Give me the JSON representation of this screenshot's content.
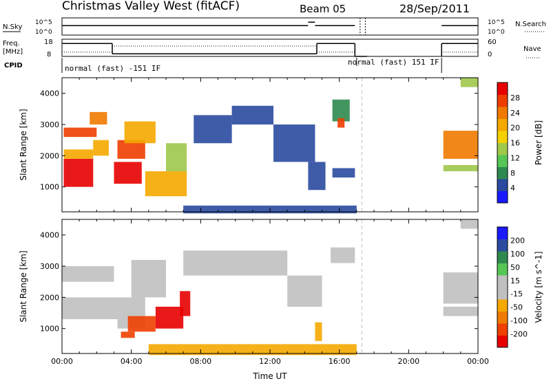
{
  "header": {
    "station": "Christmas Valley West (fitACF)",
    "beam": "Beam 05",
    "date": "28/Sep/2011"
  },
  "strip_labels": {
    "nsky": "N.Sky",
    "freq": "Freq.",
    "freq_unit": "[MHz]",
    "cpid": "CPID",
    "nsearch": "N.Search",
    "nave": "Nave"
  },
  "strip_ticks": {
    "noise_left": [
      "10^5",
      "10^0"
    ],
    "noise_right": [
      "10^5",
      "10^0"
    ],
    "freq_left": [
      "18",
      "8"
    ],
    "nave_right": [
      "60",
      "0"
    ]
  },
  "cpid_labels": [
    "normal (fast) -151 IF",
    "normal (fast) 151 IF"
  ],
  "colors": {
    "power_scale": [
      "#1a1aff",
      "#2a4aa0",
      "#2f8a4f",
      "#56c756",
      "#a0c84a",
      "#f5d000",
      "#f5a800",
      "#f07a00",
      "#ee3d00",
      "#e80000"
    ],
    "velocity_scale": [
      "#e80000",
      "#ee4000",
      "#f07a00",
      "#f5a800",
      "#c0c0c0",
      "#c0c0c0",
      "#56c756",
      "#2f8a4f",
      "#2a4aa0",
      "#1a1aff"
    ],
    "gap_line": "#c0c0c0"
  },
  "chart_data": [
    {
      "type": "heatmap",
      "quantity": "Power",
      "ylabel": "Slant Range [km]",
      "yticks": [
        "1000",
        "2000",
        "3000",
        "4000"
      ],
      "ylim": [
        200,
        4500
      ],
      "colorbar_label": "Power [dB]",
      "colorbar_ticks": [
        "4",
        "8",
        "12",
        "16",
        "20",
        "24",
        "28"
      ],
      "colorbar_range": [
        0,
        30
      ],
      "regions": [
        {
          "t": [
            0.1,
            1.8
          ],
          "r": [
            1000,
            1900
          ],
          "v": 28
        },
        {
          "t": [
            0.1,
            1.8
          ],
          "r": [
            1900,
            2200
          ],
          "v": 18
        },
        {
          "t": [
            0.1,
            2.0
          ],
          "r": [
            2600,
            2900
          ],
          "v": 26
        },
        {
          "t": [
            1.6,
            2.6
          ],
          "r": [
            3000,
            3400
          ],
          "v": 22
        },
        {
          "t": [
            1.8,
            2.7
          ],
          "r": [
            2000,
            2500
          ],
          "v": 20
        },
        {
          "t": [
            3.0,
            4.6
          ],
          "r": [
            1100,
            1800
          ],
          "v": 28
        },
        {
          "t": [
            3.2,
            4.8
          ],
          "r": [
            1900,
            2500
          ],
          "v": 24
        },
        {
          "t": [
            3.6,
            5.4
          ],
          "r": [
            2400,
            3100
          ],
          "v": 20
        },
        {
          "t": [
            4.8,
            7.2
          ],
          "r": [
            700,
            1500
          ],
          "v": 20
        },
        {
          "t": [
            6.0,
            7.2
          ],
          "r": [
            1500,
            2400
          ],
          "v": 12
        },
        {
          "t": [
            7.6,
            9.8
          ],
          "r": [
            2400,
            3300
          ],
          "v": 4
        },
        {
          "t": [
            9.8,
            12.2
          ],
          "r": [
            3000,
            3600
          ],
          "v": 4
        },
        {
          "t": [
            12.2,
            14.6
          ],
          "r": [
            1800,
            3000
          ],
          "v": 4
        },
        {
          "t": [
            14.2,
            15.2
          ],
          "r": [
            900,
            1800
          ],
          "v": 4
        },
        {
          "t": [
            15.6,
            16.6
          ],
          "r": [
            3100,
            3800
          ],
          "v": 8
        },
        {
          "t": [
            15.9,
            16.3
          ],
          "r": [
            2900,
            3200
          ],
          "v": 24
        },
        {
          "t": [
            15.6,
            16.9
          ],
          "r": [
            1300,
            1600
          ],
          "v": 4
        },
        {
          "t": [
            7.0,
            17.0
          ],
          "r": [
            150,
            400
          ],
          "v": 4
        },
        {
          "t": [
            22.0,
            24.0
          ],
          "r": [
            1900,
            2800
          ],
          "v": 22
        },
        {
          "t": [
            22.0,
            24.0
          ],
          "r": [
            1500,
            1700
          ],
          "v": 12
        },
        {
          "t": [
            23.0,
            24.0
          ],
          "r": [
            4200,
            4500
          ],
          "v": 12
        }
      ]
    },
    {
      "type": "heatmap",
      "quantity": "Velocity",
      "ylabel": "Slant Range [km]",
      "yticks": [
        "1000",
        "2000",
        "3000",
        "4000"
      ],
      "ylim": [
        200,
        4500
      ],
      "xlabel": "Time UT",
      "xticks": [
        "00:00",
        "04:00",
        "08:00",
        "12:00",
        "16:00",
        "20:00",
        "00:00"
      ],
      "colorbar_label": "Velocity [m s^-1]",
      "colorbar_ticks": [
        "-200",
        "-100",
        "-50",
        "-15",
        "15",
        "50",
        "100",
        "200"
      ],
      "colorbar_range": [
        -250,
        250
      ],
      "regions": [
        {
          "t": [
            0.0,
            3.2
          ],
          "r": [
            1300,
            2000
          ],
          "v": 0
        },
        {
          "t": [
            0.0,
            3.0
          ],
          "r": [
            2500,
            3000
          ],
          "v": 0
        },
        {
          "t": [
            3.2,
            4.8
          ],
          "r": [
            1000,
            2000
          ],
          "v": 0
        },
        {
          "t": [
            3.4,
            4.2
          ],
          "r": [
            700,
            900
          ],
          "v": -170
        },
        {
          "t": [
            3.8,
            5.4
          ],
          "r": [
            900,
            1400
          ],
          "v": -200
        },
        {
          "t": [
            5.4,
            7.0
          ],
          "r": [
            1000,
            1700
          ],
          "v": -220
        },
        {
          "t": [
            6.8,
            7.4
          ],
          "r": [
            1400,
            2200
          ],
          "v": -220
        },
        {
          "t": [
            4.0,
            6.0
          ],
          "r": [
            2000,
            3200
          ],
          "v": 0
        },
        {
          "t": [
            7.0,
            13.0
          ],
          "r": [
            2700,
            3500
          ],
          "v": -10
        },
        {
          "t": [
            13.0,
            15.0
          ],
          "r": [
            1700,
            2700
          ],
          "v": -10
        },
        {
          "t": [
            14.6,
            15.0
          ],
          "r": [
            600,
            1200
          ],
          "v": -70
        },
        {
          "t": [
            15.5,
            16.9
          ],
          "r": [
            3100,
            3600
          ],
          "v": 0
        },
        {
          "t": [
            5.0,
            17.0
          ],
          "r": [
            150,
            500
          ],
          "v": -70
        },
        {
          "t": [
            22.0,
            24.0
          ],
          "r": [
            1800,
            2800
          ],
          "v": 0
        },
        {
          "t": [
            22.0,
            24.0
          ],
          "r": [
            1400,
            1700
          ],
          "v": 0
        },
        {
          "t": [
            23.0,
            24.0
          ],
          "r": [
            4200,
            4500
          ],
          "v": 0
        }
      ]
    }
  ],
  "strips": {
    "noise_sky": {
      "segments": [
        [
          0.0,
          14.2,
          0.55
        ],
        [
          14.2,
          14.6,
          0.75
        ],
        [
          14.6,
          16.9,
          0.55
        ],
        [
          21.9,
          24.0,
          0.55
        ]
      ]
    },
    "noise_search_dotted_at_h": [
      17.2,
      17.5
    ],
    "freq": {
      "segments": [
        [
          0.0,
          2.9,
          0.75
        ],
        [
          2.9,
          14.7,
          0.15
        ],
        [
          14.7,
          16.9,
          0.75
        ],
        [
          16.9,
          17.6,
          0.0
        ],
        [
          21.9,
          24.0,
          0.75
        ]
      ]
    },
    "nave": {
      "segments": [
        [
          0.0,
          2.9,
          0.25
        ],
        [
          2.9,
          14.7,
          0.6
        ],
        [
          14.7,
          16.9,
          0.25
        ],
        [
          21.9,
          24.0,
          0.25
        ]
      ]
    },
    "cpid_changes_h": [
      0.0,
      17.0,
      21.9
    ],
    "gap_h": 17.3
  }
}
